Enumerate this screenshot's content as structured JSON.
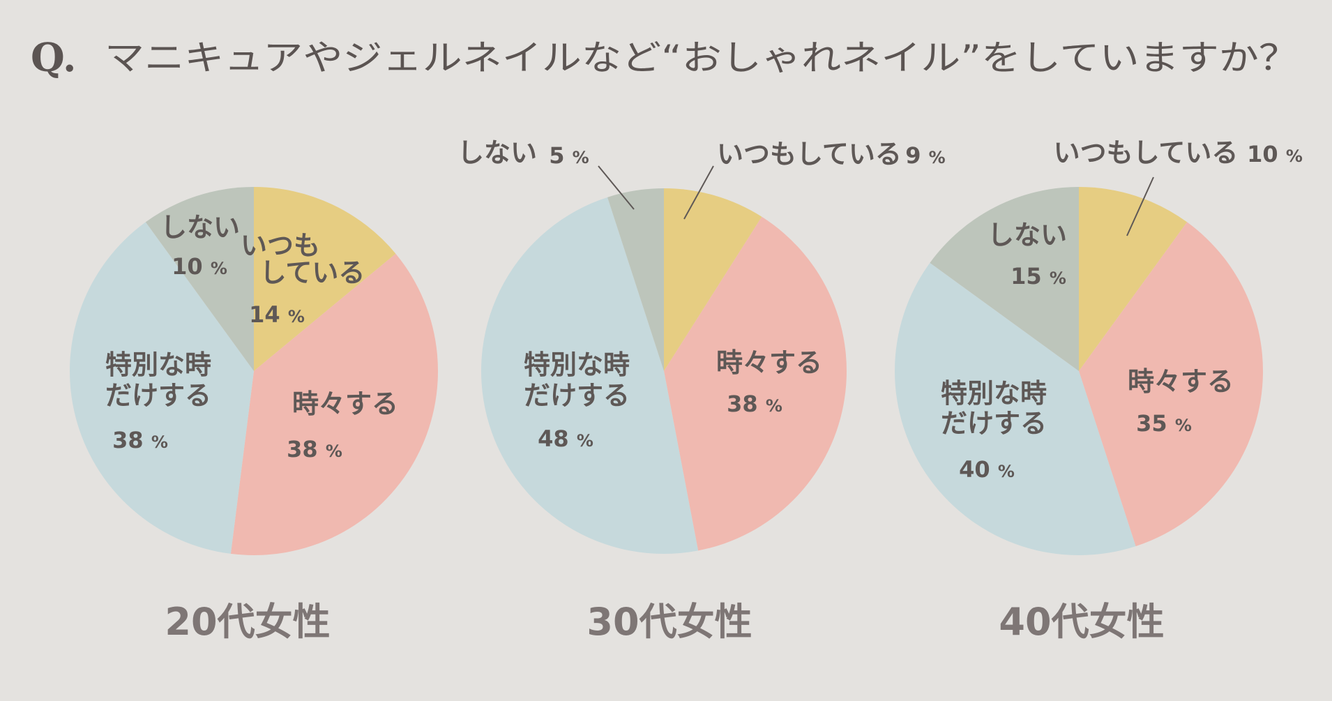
{
  "question": {
    "prefix": "Q.",
    "text": "マニキュアやジェルネイルなど“おしゃれネイル”をしていますか？"
  },
  "colors": {
    "background": "#e4e2df",
    "いつもしている": "#e6cd82",
    "時々する": "#f0b9b0",
    "特別な時だけする": "#c6d9dc",
    "しない": "#bdc5bb",
    "text": "#5e5856",
    "chart_title": "#7e7675"
  },
  "chart_data": [
    {
      "type": "pie",
      "title": "20代女性",
      "start_angle_deg": 0,
      "direction": "clockwise",
      "slices": [
        {
          "label": "いつもしている",
          "value": 14,
          "unit": "%",
          "lines": [
            "いつも",
            "している"
          ]
        },
        {
          "label": "時々する",
          "value": 38,
          "unit": "%",
          "lines": [
            "時々する"
          ]
        },
        {
          "label": "特別な時だけする",
          "value": 38,
          "unit": "%",
          "lines": [
            "特別な時",
            "だけする"
          ]
        },
        {
          "label": "しない",
          "value": 10,
          "unit": "%",
          "lines": [
            "しない"
          ]
        }
      ]
    },
    {
      "type": "pie",
      "title": "30代女性",
      "start_angle_deg": 0,
      "direction": "clockwise",
      "slices": [
        {
          "label": "いつもしている",
          "value": 9,
          "unit": "%",
          "lines": [
            "いつもしている"
          ]
        },
        {
          "label": "時々する",
          "value": 38,
          "unit": "%",
          "lines": [
            "時々する"
          ]
        },
        {
          "label": "特別な時だけする",
          "value": 48,
          "unit": "%",
          "lines": [
            "特別な時",
            "だけする"
          ]
        },
        {
          "label": "しない",
          "value": 5,
          "unit": "%",
          "lines": [
            "しない"
          ]
        }
      ]
    },
    {
      "type": "pie",
      "title": "40代女性",
      "start_angle_deg": 0,
      "direction": "clockwise",
      "slices": [
        {
          "label": "いつもしている",
          "value": 10,
          "unit": "%",
          "lines": [
            "いつもしている"
          ]
        },
        {
          "label": "時々する",
          "value": 35,
          "unit": "%",
          "lines": [
            "時々する"
          ]
        },
        {
          "label": "特別な時だけする",
          "value": 40,
          "unit": "%",
          "lines": [
            "特別な時",
            "だけする"
          ]
        },
        {
          "label": "しない",
          "value": 15,
          "unit": "%",
          "lines": [
            "しない"
          ]
        }
      ]
    }
  ]
}
